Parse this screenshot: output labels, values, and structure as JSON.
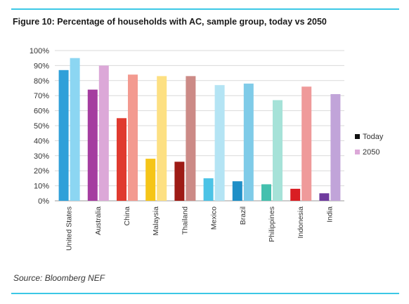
{
  "title": "Figure 10: Percentage of households with AC, sample group, today vs 2050",
  "source": "Source: Bloomberg NEF",
  "chart_data": {
    "type": "bar",
    "title": "Figure 10: Percentage of households with AC, sample group, today vs 2050",
    "categories": [
      "United States",
      "Australia",
      "China",
      "Malaysia",
      "Thailand",
      "Mexico",
      "Brazil",
      "Philippines",
      "Indonesia",
      "India"
    ],
    "series": [
      {
        "name": "Today",
        "values": [
          87,
          74,
          55,
          28,
          26,
          15,
          13,
          11,
          8,
          5
        ]
      },
      {
        "name": "2050",
        "values": [
          95,
          90,
          84,
          83,
          83,
          77,
          78,
          67,
          76,
          71
        ]
      }
    ],
    "series_colors": [
      [
        "#2fa0d9",
        "#a53da0",
        "#e03a2f",
        "#f5c518",
        "#9e1b15",
        "#4cc3e6",
        "#1f8fc7",
        "#44c0ae",
        "#d91e23",
        "#6f3c9e"
      ],
      [
        "#8cd6f2",
        "#dca8d8",
        "#f39a90",
        "#fde082",
        "#cc8a86",
        "#b4e4f4",
        "#7fcbe8",
        "#a6e2d8",
        "#ef9a9a",
        "#c1a4d9"
      ]
    ],
    "legend_colors": [
      "#111111",
      "#dca8d8"
    ],
    "y_ticks": [
      "0%",
      "10%",
      "20%",
      "30%",
      "40%",
      "50%",
      "60%",
      "70%",
      "80%",
      "90%",
      "100%"
    ],
    "ylim": [
      0,
      100
    ],
    "grid": true,
    "legend_position": "right"
  }
}
